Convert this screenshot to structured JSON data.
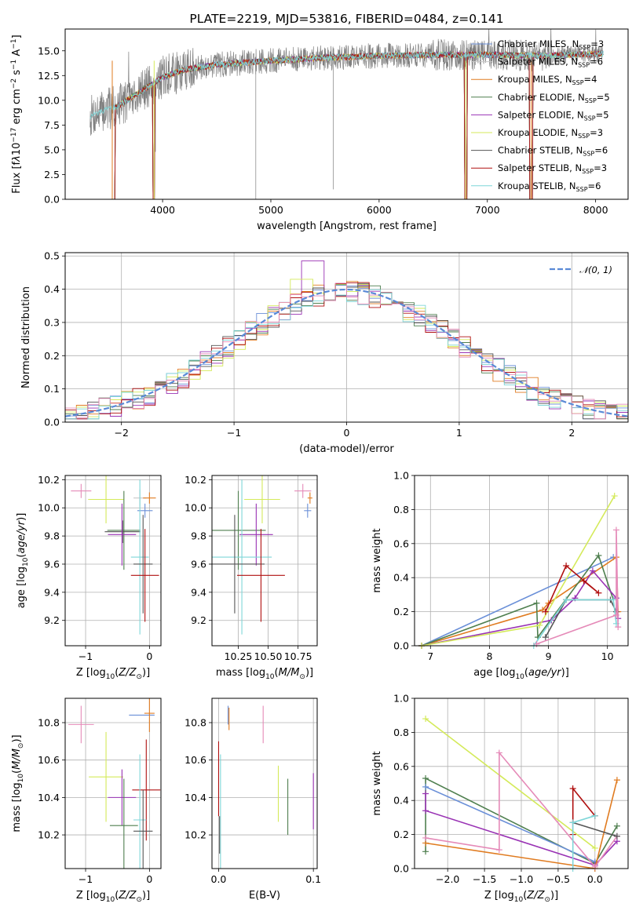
{
  "colors": {
    "Chabrier MILES": "#6a8fd8",
    "Salpeter MILES": "#e0e0e0",
    "Kroupa MILES": "#e07b20",
    "Chabrier ELODIE": "#4f7f4f",
    "Salpeter ELODIE": "#9932b4",
    "Kroupa ELODIE": "#d4ea5a",
    "Chabrier STELIB": "#555555",
    "Salpeter STELIB": "#b01010",
    "Kroupa STELIB": "#7fd6d8",
    "pink": "#e58ab8",
    "gaussian": "#5a8ad6",
    "spectrum_grey": "#808080"
  },
  "chart_data": [
    {
      "id": "spectrum",
      "type": "line",
      "title": "PLATE=2219, MJD=53816, FIBERID=0484, z=0.141",
      "xlabel": "wavelength [Angstrom, rest frame]",
      "ylabel_html": "Flux [f<tspan font-style='italic'>λ</tspan>10<tspan dy='-5' font-size='9'>−17</tspan><tspan dy='5'> erg cm</tspan><tspan dy='-5' font-size='9'>−2</tspan><tspan dy='5'> s</tspan><tspan dy='-5' font-size='9'>−1</tspan><tspan dy='5'> A</tspan><tspan dy='-5' font-size='9'>−1</tspan><tspan dy='5'>]</tspan>",
      "xlim": [
        3100,
        8300
      ],
      "ylim": [
        0,
        17.2
      ],
      "xticks": [
        4000,
        5000,
        6000,
        7000,
        8000
      ],
      "yticks": [
        0.0,
        2.5,
        5.0,
        7.5,
        10.0,
        12.5,
        15.0
      ],
      "data_range": [
        3330,
        8070
      ],
      "continuum": [
        [
          3330,
          8.4
        ],
        [
          3600,
          9.5
        ],
        [
          3900,
          11.6
        ],
        [
          4000,
          12.3
        ],
        [
          4200,
          13.1
        ],
        [
          4500,
          13.6
        ],
        [
          5000,
          14.0
        ],
        [
          5500,
          14.3
        ],
        [
          6000,
          14.5
        ],
        [
          6500,
          14.6
        ],
        [
          7000,
          14.6
        ],
        [
          7500,
          14.5
        ],
        [
          8070,
          14.7
        ]
      ],
      "model_drops": [
        [
          3520,
          3560
        ],
        [
          3910,
          3925
        ],
        [
          6790,
          6810
        ],
        [
          7390,
          7420
        ]
      ],
      "legend": [
        {
          "label": "Chabrier MILES",
          "nssp": "3"
        },
        {
          "label": "Salpeter MILES",
          "nssp": "6"
        },
        {
          "label": "Kroupa MILES",
          "nssp": "4"
        },
        {
          "label": "Chabrier ELODIE",
          "nssp": "5"
        },
        {
          "label": "Salpeter ELODIE",
          "nssp": "5"
        },
        {
          "label": "Kroupa ELODIE",
          "nssp": "3"
        },
        {
          "label": "Chabrier STELIB",
          "nssp": "6"
        },
        {
          "label": "Salpeter STELIB",
          "nssp": "3"
        },
        {
          "label": "Kroupa STELIB",
          "nssp": "6"
        }
      ]
    },
    {
      "id": "residuals",
      "type": "histogram",
      "xlabel": "(data-model)/error",
      "ylabel": "Normed distribution",
      "xlim": [
        -2.5,
        2.5
      ],
      "ylim": [
        0,
        0.51
      ],
      "xticks": [
        -2,
        -1,
        0,
        1,
        2
      ],
      "yticks": [
        0.0,
        0.1,
        0.2,
        0.3,
        0.4,
        0.5
      ],
      "grid": true,
      "bin_width": 0.1,
      "legend": [
        {
          "label": "𝒩(0, 1)"
        }
      ],
      "spiky_bins": [
        {
          "x": -0.3,
          "value": 0.485,
          "series": "Salpeter ELODIE"
        },
        {
          "x": -0.4,
          "value": 0.43,
          "series": "Kroupa ELODIE"
        }
      ]
    },
    {
      "id": "age_vs_Z",
      "type": "errorbar",
      "xlabel": "Z [log<tspan dy='4' font-size='9'>10</tspan><tspan dy='-4'>(</tspan><tspan font-style='italic'>Z/Z</tspan><tspan dy='4' font-size='9'>⊙</tspan><tspan dy='-4'>)]</tspan>",
      "ylabel_html": "age  [log<tspan dy='4' font-size='9'>10</tspan><tspan dy='-4'>(</tspan><tspan font-style='italic'>age/yr</tspan>)]",
      "xlim": [
        -1.32,
        0.18
      ],
      "ylim": [
        9.02,
        10.23
      ],
      "xticks": [
        -1,
        0
      ],
      "yticks": [
        9.2,
        9.4,
        9.6,
        9.8,
        10.0,
        10.2
      ],
      "grid": true,
      "points": [
        {
          "c": "pink",
          "x": -1.07,
          "xe": 0.16,
          "y": 10.12,
          "ye": 0.05
        },
        {
          "c": "Kroupa ELODIE",
          "x": -0.68,
          "xe": 0.28,
          "y": 10.06,
          "ye": 0.17
        },
        {
          "c": "Salpeter MILES",
          "x": -0.15,
          "xe": 0.1,
          "y": 10.07,
          "ye": 0.06
        },
        {
          "c": "Kroupa MILES",
          "x": 0.0,
          "xe": 0.1,
          "y": 10.07,
          "ye": 0.04
        },
        {
          "c": "Chabrier MILES",
          "x": -0.07,
          "xe": 0.12,
          "y": 9.98,
          "ye": 0.05
        },
        {
          "c": "Chabrier ELODIE",
          "x": -0.4,
          "xe": 0.26,
          "y": 9.84,
          "ye": 0.28
        },
        {
          "c": "Chabrier STELIB",
          "x": -0.42,
          "xe": 0.28,
          "y": 9.83,
          "ye": 0.08
        },
        {
          "c": "Salpeter ELODIE",
          "x": -0.43,
          "xe": 0.22,
          "y": 9.81,
          "ye": 0.22
        },
        {
          "c": "Kroupa STELIB",
          "x": -0.15,
          "xe": 0.14,
          "y": 9.65,
          "ye": 0.55
        },
        {
          "c": "Chabrier STELIB",
          "x": -0.1,
          "xe": 0.15,
          "y": 9.6,
          "ye": 0.35
        },
        {
          "c": "Salpeter STELIB",
          "x": -0.07,
          "xe": 0.22,
          "y": 9.52,
          "ye": 0.33
        }
      ]
    },
    {
      "id": "age_vs_mass",
      "type": "errorbar",
      "xlabel": "mass [log<tspan dy='4' font-size='9'>10</tspan><tspan dy='-4'>(</tspan><tspan font-style='italic'>M/M</tspan><tspan dy='4' font-size='9'>⊙</tspan><tspan dy='-4'>)]</tspan>",
      "xlim": [
        10.03,
        10.91
      ],
      "ylim": [
        9.02,
        10.23
      ],
      "xticks": [
        10.25,
        10.5,
        10.75
      ],
      "xticklabels": [
        "10.25",
        "10.50",
        "10.75"
      ],
      "yticks": [
        9.2,
        9.4,
        9.6,
        9.8,
        10.0,
        10.2
      ],
      "grid": true,
      "points": [
        {
          "c": "pink",
          "x": 10.79,
          "xe": 0.07,
          "y": 10.12,
          "ye": 0.05
        },
        {
          "c": "Kroupa ELODIE",
          "x": 10.45,
          "xe": 0.15,
          "y": 10.06,
          "ye": 0.17
        },
        {
          "c": "Kroupa MILES",
          "x": 10.85,
          "xe": 0.02,
          "y": 10.07,
          "ye": 0.04
        },
        {
          "c": "Chabrier MILES",
          "x": 10.83,
          "xe": 0.03,
          "y": 9.98,
          "ye": 0.05
        },
        {
          "c": "Chabrier ELODIE",
          "x": 10.25,
          "xe": 0.23,
          "y": 9.84,
          "ye": 0.28
        },
        {
          "c": "Salpeter ELODIE",
          "x": 10.4,
          "xe": 0.14,
          "y": 9.81,
          "ye": 0.22
        },
        {
          "c": "Kroupa STELIB",
          "x": 10.28,
          "xe": 0.25,
          "y": 9.65,
          "ye": 0.55
        },
        {
          "c": "Chabrier STELIB",
          "x": 10.22,
          "xe": 0.25,
          "y": 9.6,
          "ye": 0.35
        },
        {
          "c": "Salpeter STELIB",
          "x": 10.44,
          "xe": 0.2,
          "y": 9.52,
          "ye": 0.33
        }
      ]
    },
    {
      "id": "weight_vs_age",
      "type": "line",
      "xlabel": "age  [log<tspan dy='4' font-size='9'>10</tspan><tspan dy='-4'>(</tspan><tspan font-style='italic'>age/yr</tspan>)]",
      "ylabel": "mass weight",
      "xlim": [
        6.73,
        10.35
      ],
      "ylim": [
        0,
        1.0
      ],
      "xticks": [
        7,
        8,
        9,
        10
      ],
      "yticks": [
        0.0,
        0.2,
        0.4,
        0.6,
        0.8,
        1.0
      ],
      "grid": true,
      "series": [
        {
          "c": "Chabrier MILES",
          "x": [
            6.85,
            10.1
          ],
          "y": [
            0.0,
            0.52
          ]
        },
        {
          "c": "Kroupa MILES",
          "x": [
            6.85,
            8.9,
            9.0,
            10.15,
            10.18
          ],
          "y": [
            0.0,
            0.21,
            0.25,
            0.52,
            0.2
          ]
        },
        {
          "c": "Chabrier ELODIE",
          "x": [
            6.85,
            8.8,
            8.82,
            9.85,
            10.1
          ],
          "y": [
            0.0,
            0.25,
            0.05,
            0.53,
            0.27
          ]
        },
        {
          "c": "Salpeter ELODIE",
          "x": [
            6.85,
            9.05,
            9.45,
            9.75,
            10.15,
            10.18
          ],
          "y": [
            0.0,
            0.15,
            0.28,
            0.44,
            0.28,
            0.16
          ]
        },
        {
          "c": "Kroupa ELODIE",
          "x": [
            6.85,
            8.85,
            10.12
          ],
          "y": [
            0.0,
            0.12,
            0.88
          ]
        },
        {
          "c": "Chabrier STELIB",
          "x": [
            8.95,
            9.3,
            10.05,
            10.15
          ],
          "y": [
            0.05,
            0.27,
            0.27,
            0.2
          ]
        },
        {
          "c": "Salpeter STELIB",
          "x": [
            8.95,
            9.3,
            9.85,
            9.6
          ],
          "y": [
            0.2,
            0.47,
            0.31,
            0.38
          ]
        },
        {
          "c": "Kroupa STELIB",
          "x": [
            8.75,
            9.3,
            10.1,
            10.15
          ],
          "y": [
            0.0,
            0.27,
            0.27,
            0.13
          ]
        },
        {
          "c": "pink",
          "x": [
            8.8,
            10.15,
            10.15,
            10.18
          ],
          "y": [
            0.01,
            0.18,
            0.68,
            0.11
          ]
        }
      ]
    },
    {
      "id": "mass_vs_Z",
      "type": "errorbar",
      "xlabel": "Z [log<tspan dy='4' font-size='9'>10</tspan><tspan dy='-4'>(</tspan><tspan font-style='italic'>Z/Z</tspan><tspan dy='4' font-size='9'>⊙</tspan><tspan dy='-4'>)]</tspan>",
      "ylabel_html": "mass [log<tspan dy='4' font-size='9'>10</tspan><tspan dy='-4'>(</tspan><tspan font-style='italic'>M/M</tspan><tspan dy='4' font-size='9'>⊙</tspan><tspan dy='-4'>)]</tspan>",
      "xlim": [
        -1.32,
        0.18
      ],
      "ylim": [
        10.02,
        10.93
      ],
      "xticks": [
        -1,
        0
      ],
      "yticks": [
        10.2,
        10.4,
        10.6,
        10.8
      ],
      "grid": true,
      "points": [
        {
          "c": "pink",
          "x": -1.07,
          "xe": 0.2,
          "y": 10.79,
          "ye": 0.1
        },
        {
          "c": "Chabrier MILES",
          "x": -0.12,
          "xe": 0.2,
          "y": 10.84,
          "ye": 0.0
        },
        {
          "c": "Kroupa MILES",
          "x": 0.0,
          "xe": 0.08,
          "y": 10.85,
          "ye": 0.1
        },
        {
          "c": "Kroupa ELODIE",
          "x": -0.68,
          "xe": 0.27,
          "y": 10.51,
          "ye": 0.24
        },
        {
          "c": "Salpeter STELIB",
          "x": -0.05,
          "xe": 0.22,
          "y": 10.44,
          "ye": 0.27
        },
        {
          "c": "Salpeter ELODIE",
          "x": -0.43,
          "xe": 0.22,
          "y": 10.4,
          "ye": 0.15
        },
        {
          "c": "Kroupa STELIB",
          "x": -0.15,
          "xe": 0.1,
          "y": 10.28,
          "ye": 0.35
        },
        {
          "c": "Chabrier ELODIE",
          "x": -0.4,
          "xe": 0.22,
          "y": 10.25,
          "ye": 0.25
        },
        {
          "c": "Chabrier STELIB",
          "x": -0.1,
          "xe": 0.15,
          "y": 10.22,
          "ye": 0.22
        }
      ]
    },
    {
      "id": "mass_vs_EBV",
      "type": "errorbar",
      "xlabel": "E(B-V)",
      "xlim": [
        -0.007,
        0.104
      ],
      "ylim": [
        10.02,
        10.93
      ],
      "xticks": [
        0.0,
        0.1
      ],
      "xticklabels": [
        "0.0",
        "0.1"
      ],
      "yticks": [
        10.2,
        10.4,
        10.6,
        10.8
      ],
      "grid": true,
      "points": [
        {
          "c": "Chabrier MILES",
          "x": 0.01,
          "xe": 0,
          "y": 10.84,
          "ye": 0.05
        },
        {
          "c": "Kroupa MILES",
          "x": 0.011,
          "xe": 0,
          "y": 10.82,
          "ye": 0.06
        },
        {
          "c": "pink",
          "x": 0.047,
          "xe": 0,
          "y": 10.79,
          "ye": 0.1
        },
        {
          "c": "Salpeter STELIB",
          "x": 0.0,
          "xe": 0,
          "y": 10.5,
          "ye": 0.2
        },
        {
          "c": "Kroupa STELIB",
          "x": 0.002,
          "xe": 0,
          "y": 10.28,
          "ye": 0.35
        },
        {
          "c": "Kroupa ELODIE",
          "x": 0.063,
          "xe": 0,
          "y": 10.42,
          "ye": 0.15
        },
        {
          "c": "Chabrier ELODIE",
          "x": 0.073,
          "xe": 0,
          "y": 10.35,
          "ye": 0.15
        },
        {
          "c": "Salpeter ELODIE",
          "x": 0.1,
          "xe": 0,
          "y": 10.38,
          "ye": 0.15
        },
        {
          "c": "Chabrier STELIB",
          "x": 0.001,
          "xe": 0,
          "y": 10.2,
          "ye": 0.1
        }
      ]
    },
    {
      "id": "weight_vs_Z",
      "type": "line",
      "xlabel": "Z [log<tspan dy='4' font-size='9'>10</tspan><tspan dy='-4'>(</tspan><tspan font-style='italic'>Z/Z</tspan><tspan dy='4' font-size='9'>⊙</tspan><tspan dy='-4'>)]</tspan>",
      "ylabel": "mass weight",
      "xlim": [
        -2.45,
        0.45
      ],
      "ylim": [
        0,
        1.0
      ],
      "xticks": [
        -2.0,
        -1.5,
        -1.0,
        -0.5,
        0.0
      ],
      "xticklabels": [
        "−2.0",
        "−1.5",
        "−1.0",
        "−0.5",
        "0.0"
      ],
      "yticks": [
        0.0,
        0.2,
        0.4,
        0.6,
        0.8,
        1.0
      ],
      "grid": true,
      "series": [
        {
          "c": "Kroupa ELODIE",
          "x": [
            -2.3,
            0.0
          ],
          "y": [
            0.88,
            0.12
          ]
        },
        {
          "c": "Chabrier ELODIE",
          "x": [
            -2.3,
            -2.3,
            0.0,
            0.3
          ],
          "y": [
            0.1,
            0.53,
            0.03,
            0.25
          ]
        },
        {
          "c": "Chabrier MILES",
          "x": [
            -2.3,
            0.0
          ],
          "y": [
            0.48,
            0.04
          ]
        },
        {
          "c": "Salpeter ELODIE",
          "x": [
            -2.3,
            -2.3,
            0.0,
            0.3
          ],
          "y": [
            0.44,
            0.34,
            0.02,
            0.16
          ]
        },
        {
          "c": "Kroupa MILES",
          "x": [
            -2.3,
            0.0,
            0.3
          ],
          "y": [
            0.15,
            0.0,
            0.52
          ]
        },
        {
          "c": "pink",
          "x": [
            -2.3,
            -1.3,
            -1.3,
            0.0,
            0.3
          ],
          "y": [
            0.18,
            0.11,
            0.68,
            0.01,
            0.19
          ]
        },
        {
          "c": "Chabrier STELIB",
          "x": [
            -0.3,
            0.3
          ],
          "y": [
            0.27,
            0.19
          ]
        },
        {
          "c": "Salpeter STELIB",
          "x": [
            -0.3,
            -0.3,
            0.0
          ],
          "y": [
            0.2,
            0.47,
            0.31
          ]
        },
        {
          "c": "Kroupa STELIB",
          "x": [
            -0.3,
            -0.3,
            0.0
          ],
          "y": [
            0.0,
            0.27,
            0.31
          ]
        }
      ]
    }
  ]
}
